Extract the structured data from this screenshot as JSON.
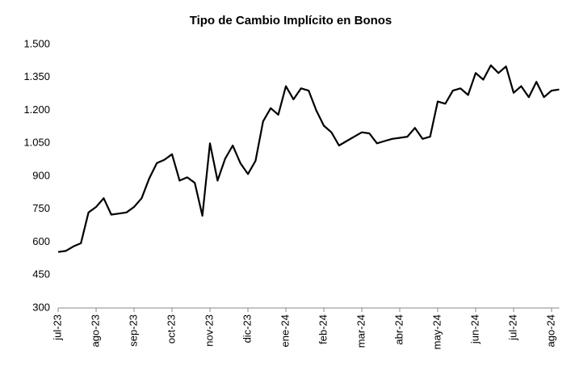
{
  "chart_data": {
    "type": "line",
    "title": "Tipo de Cambio Implícito en Bonos",
    "categories": [
      "jul-23",
      null,
      null,
      null,
      null,
      "ago-23",
      null,
      null,
      null,
      null,
      "sep-23",
      null,
      null,
      null,
      null,
      "oct-23",
      null,
      null,
      null,
      null,
      "nov-23",
      null,
      null,
      null,
      null,
      "dic-23",
      null,
      null,
      null,
      null,
      "ene-24",
      null,
      null,
      null,
      null,
      "feb-24",
      null,
      null,
      null,
      null,
      "mar-24",
      null,
      null,
      null,
      null,
      "abr-24",
      null,
      null,
      null,
      null,
      "may-24",
      null,
      null,
      null,
      null,
      "jun-24",
      null,
      null,
      null,
      null,
      "jul-24",
      null,
      null,
      null,
      null,
      "ago-24",
      null
    ],
    "values": [
      555,
      560,
      580,
      595,
      735,
      760,
      800,
      725,
      730,
      735,
      760,
      800,
      890,
      960,
      975,
      1000,
      880,
      895,
      870,
      720,
      1050,
      880,
      980,
      1040,
      960,
      910,
      970,
      1150,
      1210,
      1180,
      1310,
      1250,
      1300,
      1290,
      1200,
      1130,
      1100,
      1040,
      1060,
      1080,
      1100,
      1095,
      1050,
      1060,
      1070,
      1075,
      1080,
      1120,
      1070,
      1080,
      1240,
      1230,
      1290,
      1300,
      1270,
      1370,
      1340,
      1405,
      1370,
      1400,
      1280,
      1310,
      1260,
      1330,
      1260,
      1290,
      1295
    ],
    "color": "#000000",
    "ylim": [
      300,
      1500
    ],
    "yticks": [
      {
        "value": 300,
        "label": "300"
      },
      {
        "value": 450,
        "label": "450"
      },
      {
        "value": 600,
        "label": "600"
      },
      {
        "value": 750,
        "label": "750"
      },
      {
        "value": 900,
        "label": "900"
      },
      {
        "value": 1050,
        "label": "1.050"
      },
      {
        "value": 1200,
        "label": "1.200"
      },
      {
        "value": 1350,
        "label": "1.350"
      },
      {
        "value": 1500,
        "label": "1.500"
      }
    ]
  }
}
